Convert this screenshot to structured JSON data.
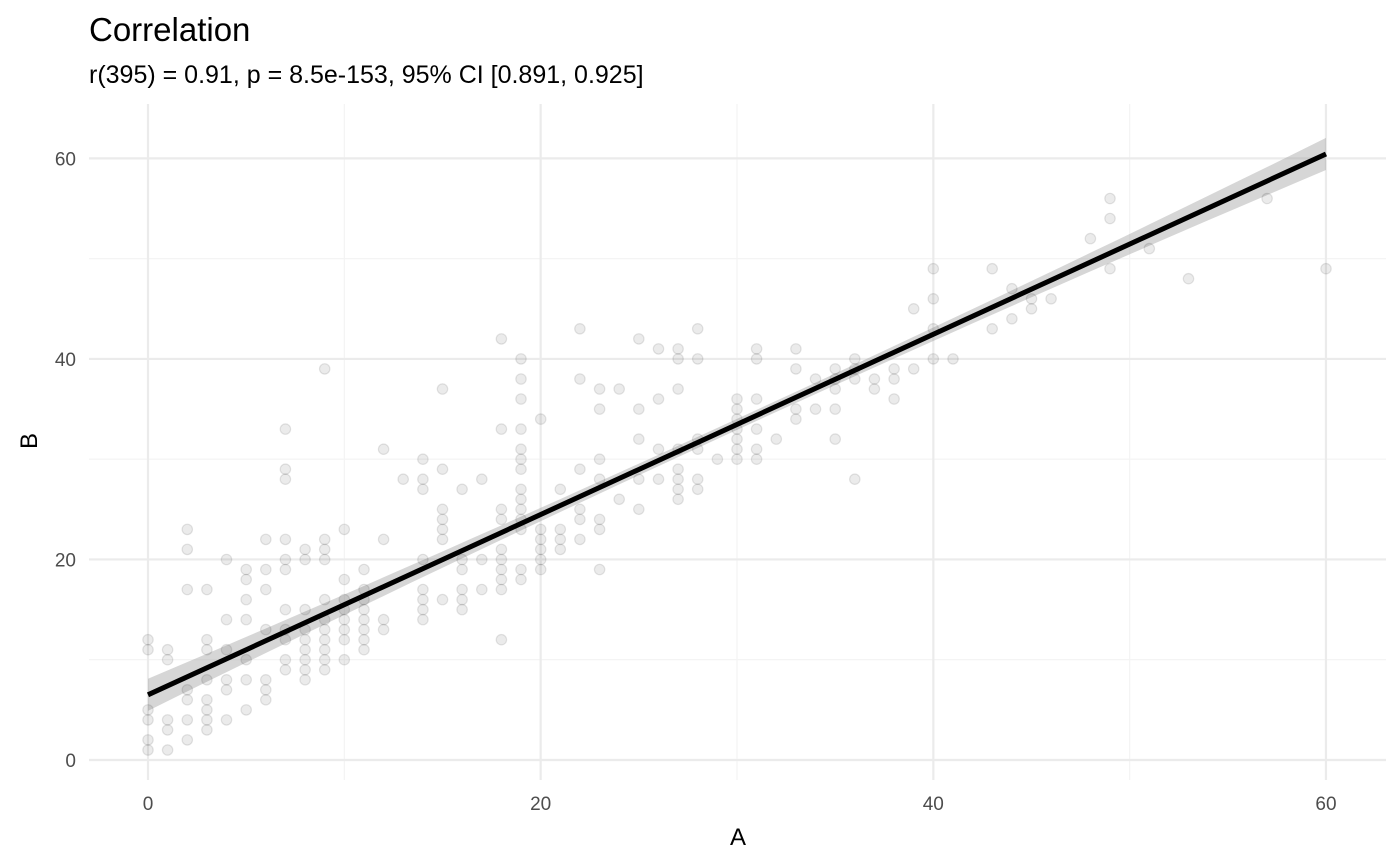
{
  "chart_data": {
    "type": "scatter",
    "title": "Correlation",
    "subtitle": "r(395) = 0.91, p = 8.5e-153, 95% CI [0.891, 0.925]",
    "xlabel": "A",
    "ylabel": "B",
    "xlim": [
      -3,
      63
    ],
    "ylim": [
      -3,
      65
    ],
    "x_ticks": [
      0,
      20,
      40,
      60
    ],
    "y_ticks": [
      0,
      20,
      40,
      60
    ],
    "x_tick_labels": [
      "0",
      "20",
      "40",
      "60"
    ],
    "y_tick_labels": [
      "0",
      "20",
      "40",
      "60"
    ],
    "x_minor_ticks": [
      10,
      30,
      50
    ],
    "y_minor_ticks": [
      10,
      30,
      50
    ],
    "grid": true,
    "point_color": "#000000",
    "line_color": "#000000",
    "band_color": "#999999",
    "fit": {
      "method": "linear",
      "intercept": 6.5,
      "slope": 0.899,
      "x_range": [
        0,
        60
      ],
      "ci_half_width_ends": 1.6,
      "ci_half_width_center": 0.55
    },
    "points": [
      [
        0,
        12
      ],
      [
        0,
        11
      ],
      [
        0,
        5
      ],
      [
        0,
        4
      ],
      [
        0,
        2
      ],
      [
        0,
        1
      ],
      [
        1,
        11
      ],
      [
        1,
        10
      ],
      [
        1,
        4
      ],
      [
        1,
        3
      ],
      [
        1,
        1
      ],
      [
        2,
        23
      ],
      [
        2,
        21
      ],
      [
        2,
        17
      ],
      [
        2,
        7
      ],
      [
        2,
        6
      ],
      [
        2,
        4
      ],
      [
        2,
        2
      ],
      [
        3,
        17
      ],
      [
        3,
        12
      ],
      [
        3,
        11
      ],
      [
        3,
        8
      ],
      [
        3,
        6
      ],
      [
        3,
        5
      ],
      [
        3,
        4
      ],
      [
        3,
        3
      ],
      [
        4,
        20
      ],
      [
        4,
        14
      ],
      [
        4,
        11
      ],
      [
        4,
        8
      ],
      [
        4,
        7
      ],
      [
        4,
        4
      ],
      [
        5,
        19
      ],
      [
        5,
        18
      ],
      [
        5,
        16
      ],
      [
        5,
        14
      ],
      [
        5,
        10
      ],
      [
        5,
        8
      ],
      [
        5,
        5
      ],
      [
        6,
        22
      ],
      [
        6,
        19
      ],
      [
        6,
        17
      ],
      [
        6,
        13
      ],
      [
        6,
        8
      ],
      [
        6,
        7
      ],
      [
        6,
        6
      ],
      [
        7,
        33
      ],
      [
        7,
        29
      ],
      [
        7,
        28
      ],
      [
        7,
        22
      ],
      [
        7,
        20
      ],
      [
        7,
        19
      ],
      [
        7,
        15
      ],
      [
        7,
        13
      ],
      [
        7,
        12
      ],
      [
        7,
        10
      ],
      [
        7,
        9
      ],
      [
        8,
        21
      ],
      [
        8,
        20
      ],
      [
        8,
        15
      ],
      [
        8,
        13
      ],
      [
        8,
        12
      ],
      [
        8,
        11
      ],
      [
        8,
        10
      ],
      [
        8,
        9
      ],
      [
        8,
        8
      ],
      [
        9,
        39
      ],
      [
        9,
        22
      ],
      [
        9,
        21
      ],
      [
        9,
        20
      ],
      [
        9,
        16
      ],
      [
        9,
        14
      ],
      [
        9,
        13
      ],
      [
        9,
        12
      ],
      [
        9,
        11
      ],
      [
        9,
        10
      ],
      [
        9,
        9
      ],
      [
        10,
        23
      ],
      [
        10,
        18
      ],
      [
        10,
        16
      ],
      [
        10,
        15
      ],
      [
        10,
        14
      ],
      [
        10,
        13
      ],
      [
        10,
        12
      ],
      [
        10,
        10
      ],
      [
        11,
        19
      ],
      [
        11,
        17
      ],
      [
        11,
        16
      ],
      [
        11,
        15
      ],
      [
        11,
        14
      ],
      [
        11,
        13
      ],
      [
        11,
        12
      ],
      [
        11,
        11
      ],
      [
        12,
        31
      ],
      [
        12,
        22
      ],
      [
        12,
        14
      ],
      [
        12,
        13
      ],
      [
        13,
        28
      ],
      [
        14,
        30
      ],
      [
        14,
        28
      ],
      [
        14,
        27
      ],
      [
        14,
        20
      ],
      [
        14,
        17
      ],
      [
        14,
        16
      ],
      [
        14,
        15
      ],
      [
        14,
        14
      ],
      [
        15,
        37
      ],
      [
        15,
        29
      ],
      [
        15,
        25
      ],
      [
        15,
        24
      ],
      [
        15,
        23
      ],
      [
        15,
        22
      ],
      [
        15,
        16
      ],
      [
        16,
        27
      ],
      [
        16,
        20
      ],
      [
        16,
        19
      ],
      [
        16,
        17
      ],
      [
        16,
        16
      ],
      [
        16,
        15
      ],
      [
        17,
        28
      ],
      [
        17,
        20
      ],
      [
        17,
        17
      ],
      [
        18,
        42
      ],
      [
        18,
        33
      ],
      [
        18,
        25
      ],
      [
        18,
        24
      ],
      [
        18,
        21
      ],
      [
        18,
        20
      ],
      [
        18,
        19
      ],
      [
        18,
        18
      ],
      [
        18,
        17
      ],
      [
        18,
        12
      ],
      [
        19,
        40
      ],
      [
        19,
        38
      ],
      [
        19,
        36
      ],
      [
        19,
        33
      ],
      [
        19,
        31
      ],
      [
        19,
        30
      ],
      [
        19,
        29
      ],
      [
        19,
        27
      ],
      [
        19,
        26
      ],
      [
        19,
        25
      ],
      [
        19,
        24
      ],
      [
        19,
        23
      ],
      [
        19,
        19
      ],
      [
        19,
        18
      ],
      [
        20,
        34
      ],
      [
        20,
        23
      ],
      [
        20,
        22
      ],
      [
        20,
        21
      ],
      [
        20,
        20
      ],
      [
        20,
        19
      ],
      [
        21,
        27
      ],
      [
        21,
        23
      ],
      [
        21,
        22
      ],
      [
        21,
        21
      ],
      [
        22,
        43
      ],
      [
        22,
        38
      ],
      [
        22,
        29
      ],
      [
        22,
        25
      ],
      [
        22,
        24
      ],
      [
        22,
        22
      ],
      [
        23,
        37
      ],
      [
        23,
        35
      ],
      [
        23,
        30
      ],
      [
        23,
        28
      ],
      [
        23,
        24
      ],
      [
        23,
        23
      ],
      [
        23,
        19
      ],
      [
        24,
        37
      ],
      [
        24,
        26
      ],
      [
        25,
        42
      ],
      [
        25,
        35
      ],
      [
        25,
        32
      ],
      [
        25,
        28
      ],
      [
        25,
        25
      ],
      [
        26,
        41
      ],
      [
        26,
        36
      ],
      [
        26,
        31
      ],
      [
        26,
        28
      ],
      [
        27,
        41
      ],
      [
        27,
        40
      ],
      [
        27,
        37
      ],
      [
        27,
        31
      ],
      [
        27,
        29
      ],
      [
        27,
        28
      ],
      [
        27,
        27
      ],
      [
        27,
        26
      ],
      [
        28,
        43
      ],
      [
        28,
        40
      ],
      [
        28,
        32
      ],
      [
        28,
        31
      ],
      [
        28,
        28
      ],
      [
        28,
        27
      ],
      [
        29,
        30
      ],
      [
        30,
        36
      ],
      [
        30,
        35
      ],
      [
        30,
        34
      ],
      [
        30,
        33
      ],
      [
        30,
        32
      ],
      [
        30,
        31
      ],
      [
        30,
        30
      ],
      [
        31,
        41
      ],
      [
        31,
        40
      ],
      [
        31,
        36
      ],
      [
        31,
        33
      ],
      [
        31,
        31
      ],
      [
        31,
        30
      ],
      [
        32,
        32
      ],
      [
        33,
        41
      ],
      [
        33,
        39
      ],
      [
        33,
        35
      ],
      [
        33,
        34
      ],
      [
        34,
        38
      ],
      [
        34,
        35
      ],
      [
        35,
        39
      ],
      [
        35,
        38
      ],
      [
        35,
        37
      ],
      [
        35,
        35
      ],
      [
        35,
        32
      ],
      [
        36,
        40
      ],
      [
        36,
        39
      ],
      [
        36,
        38
      ],
      [
        36,
        28
      ],
      [
        37,
        38
      ],
      [
        37,
        37
      ],
      [
        38,
        39
      ],
      [
        38,
        38
      ],
      [
        38,
        36
      ],
      [
        39,
        45
      ],
      [
        39,
        39
      ],
      [
        40,
        49
      ],
      [
        40,
        46
      ],
      [
        40,
        43
      ],
      [
        40,
        40
      ],
      [
        41,
        40
      ],
      [
        43,
        49
      ],
      [
        43,
        43
      ],
      [
        44,
        47
      ],
      [
        44,
        44
      ],
      [
        45,
        46
      ],
      [
        45,
        45
      ],
      [
        46,
        46
      ],
      [
        48,
        52
      ],
      [
        49,
        56
      ],
      [
        49,
        54
      ],
      [
        49,
        49
      ],
      [
        51,
        51
      ],
      [
        53,
        48
      ],
      [
        57,
        56
      ],
      [
        60,
        49
      ]
    ]
  }
}
